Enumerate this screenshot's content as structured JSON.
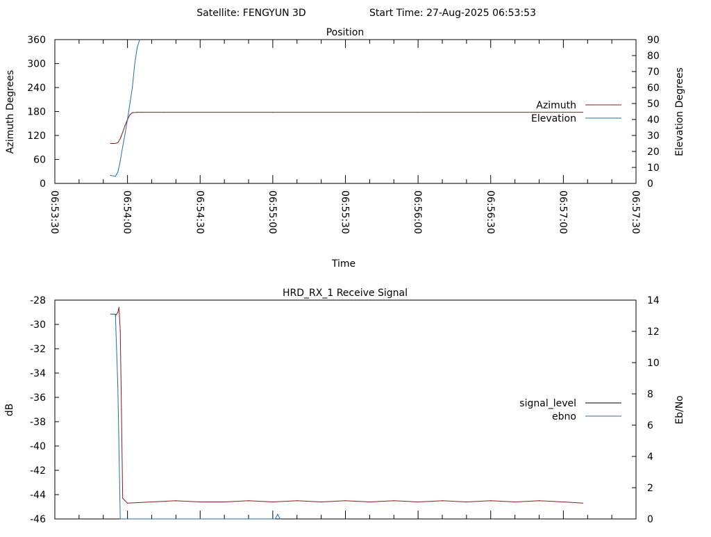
{
  "header": {
    "satellite_label": "Satellite: FENGYUN 3D",
    "start_time_label": "Start Time: 27-Aug-2025 06:53:53"
  },
  "colors": {
    "azimuth": "#8b1a1a",
    "elevation": "#1f6fa8",
    "signal_level": "#8b1a1a",
    "ebno": "#1f6fa8",
    "ebno_start": "#1a8a3a",
    "legend_signal_sample": "#000000"
  },
  "chart_data": [
    {
      "type": "line",
      "title": "Position",
      "xlabel": "Time",
      "ylabel": "Azimuth Degrees",
      "y2label": "Elevation Degrees",
      "xlim": [
        "06:53:30",
        "06:57:30"
      ],
      "ylim": [
        0,
        360
      ],
      "y2lim": [
        0,
        90
      ],
      "x_ticks": [
        "06:53:30",
        "06:54:00",
        "06:54:30",
        "06:55:00",
        "06:55:30",
        "06:56:00",
        "06:56:30",
        "06:57:00",
        "06:57:30"
      ],
      "y_ticks": [
        0,
        60,
        120,
        180,
        240,
        300,
        360
      ],
      "y2_ticks": [
        0,
        10,
        20,
        30,
        40,
        50,
        60,
        70,
        80,
        90
      ],
      "legend_position": "right",
      "series": [
        {
          "name": "Azimuth",
          "axis": "left",
          "x": [
            "06:53:53",
            "06:53:55",
            "06:53:56",
            "06:53:57",
            "06:53:58",
            "06:53:59",
            "06:54:00",
            "06:54:01",
            "06:54:02",
            "06:54:04",
            "06:54:06",
            "06:54:15",
            "06:55:00",
            "06:56:00",
            "06:57:00",
            "06:57:08"
          ],
          "values": [
            100,
            100,
            102,
            112,
            128,
            145,
            160,
            172,
            177,
            178,
            178,
            178,
            178,
            178,
            178,
            178
          ]
        },
        {
          "name": "Elevation",
          "axis": "right",
          "x": [
            "06:53:53",
            "06:53:55",
            "06:53:56",
            "06:53:57",
            "06:53:58",
            "06:53:59",
            "06:54:00",
            "06:54:01",
            "06:54:02",
            "06:54:03",
            "06:54:04",
            "06:54:05"
          ],
          "values": [
            5,
            4.5,
            7,
            14,
            23,
            31,
            40,
            50,
            60,
            75,
            85,
            90
          ]
        }
      ]
    },
    {
      "type": "line",
      "title": "HRD_RX_1 Receive Signal",
      "ylabel": "dB",
      "y2label": "Eb/No",
      "xlim": [
        "06:53:30",
        "06:57:30"
      ],
      "ylim": [
        -46,
        -28
      ],
      "y2lim": [
        0,
        14
      ],
      "y_ticks": [
        -46,
        -44,
        -42,
        -40,
        -38,
        -36,
        -34,
        -32,
        -30,
        -28
      ],
      "y2_ticks": [
        0,
        2,
        4,
        6,
        8,
        10,
        12,
        14
      ],
      "legend_position": "right",
      "series": [
        {
          "name": "signal_level",
          "axis": "left",
          "x": [
            "06:53:55",
            "06:53:56",
            "06:53:56.5",
            "06:53:57",
            "06:53:57.5",
            "06:53:58",
            "06:53:59",
            "06:54:00",
            "06:54:10",
            "06:54:20",
            "06:54:30",
            "06:54:40",
            "06:54:50",
            "06:55:00",
            "06:55:10",
            "06:55:20",
            "06:55:30",
            "06:55:40",
            "06:55:50",
            "06:56:00",
            "06:56:10",
            "06:56:20",
            "06:56:30",
            "06:56:40",
            "06:56:50",
            "06:57:00",
            "06:57:08"
          ],
          "values": [
            -29.3,
            -29.0,
            -28.6,
            -30.5,
            -37.0,
            -44.3,
            -44.5,
            -44.7,
            -44.6,
            -44.5,
            -44.6,
            -44.6,
            -44.5,
            -44.6,
            -44.5,
            -44.6,
            -44.5,
            -44.6,
            -44.5,
            -44.6,
            -44.5,
            -44.6,
            -44.5,
            -44.6,
            -44.5,
            -44.6,
            -44.7
          ]
        },
        {
          "name": "ebno",
          "axis": "right",
          "x": [
            "06:53:53",
            "06:53:55",
            "06:53:56",
            "06:53:57",
            "06:55:01",
            "06:55:02",
            "06:55:03"
          ],
          "values": [
            13.1,
            13.1,
            8.5,
            0,
            0,
            0.3,
            0
          ]
        }
      ]
    }
  ]
}
